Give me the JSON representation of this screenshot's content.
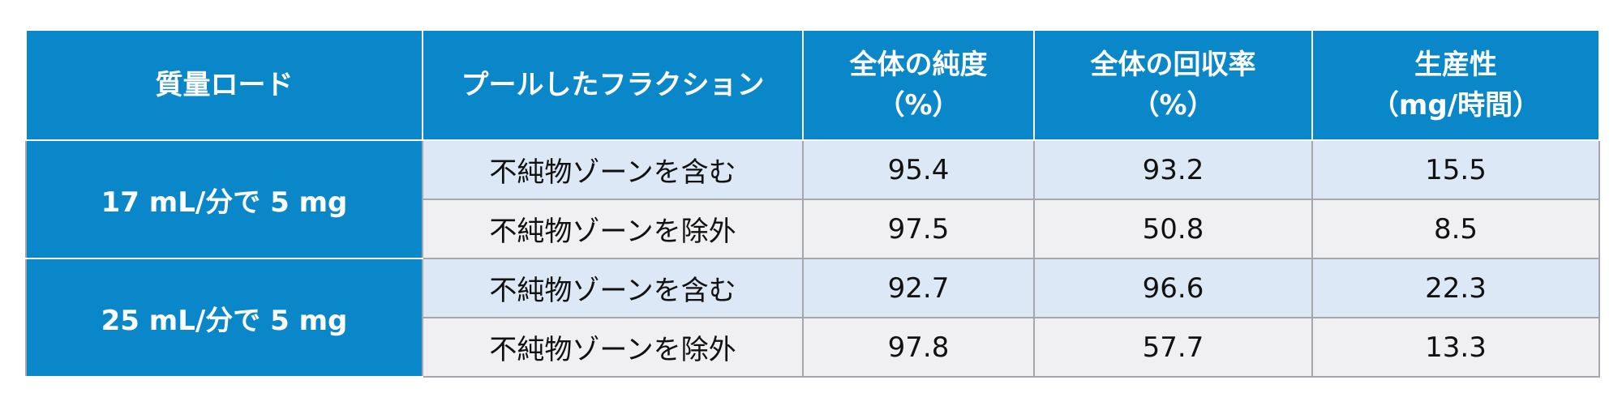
{
  "table": {
    "header": [
      [
        "質量ロード"
      ],
      [
        "プールしたフラクション"
      ],
      [
        "全体の純度",
        "（%）"
      ],
      [
        "全体の回収率",
        "（%）"
      ],
      [
        "生産性",
        "（mg/時間）"
      ]
    ],
    "groups": [
      {
        "load": "17 mL/分で 5 mg",
        "rows": [
          [
            "不純物ゾーンを含む",
            "95.4",
            "93.2",
            "15.5"
          ],
          [
            "不純物ゾーンを除外",
            "97.5",
            "50.8",
            "8.5"
          ]
        ]
      },
      {
        "load": "25 mL/分で 5 mg",
        "rows": [
          [
            "不純物ゾーンを含む",
            "92.7",
            "96.6",
            "22.3"
          ],
          [
            "不純物ゾーンを除外",
            "97.8",
            "57.7",
            "13.3"
          ]
        ]
      }
    ]
  }
}
